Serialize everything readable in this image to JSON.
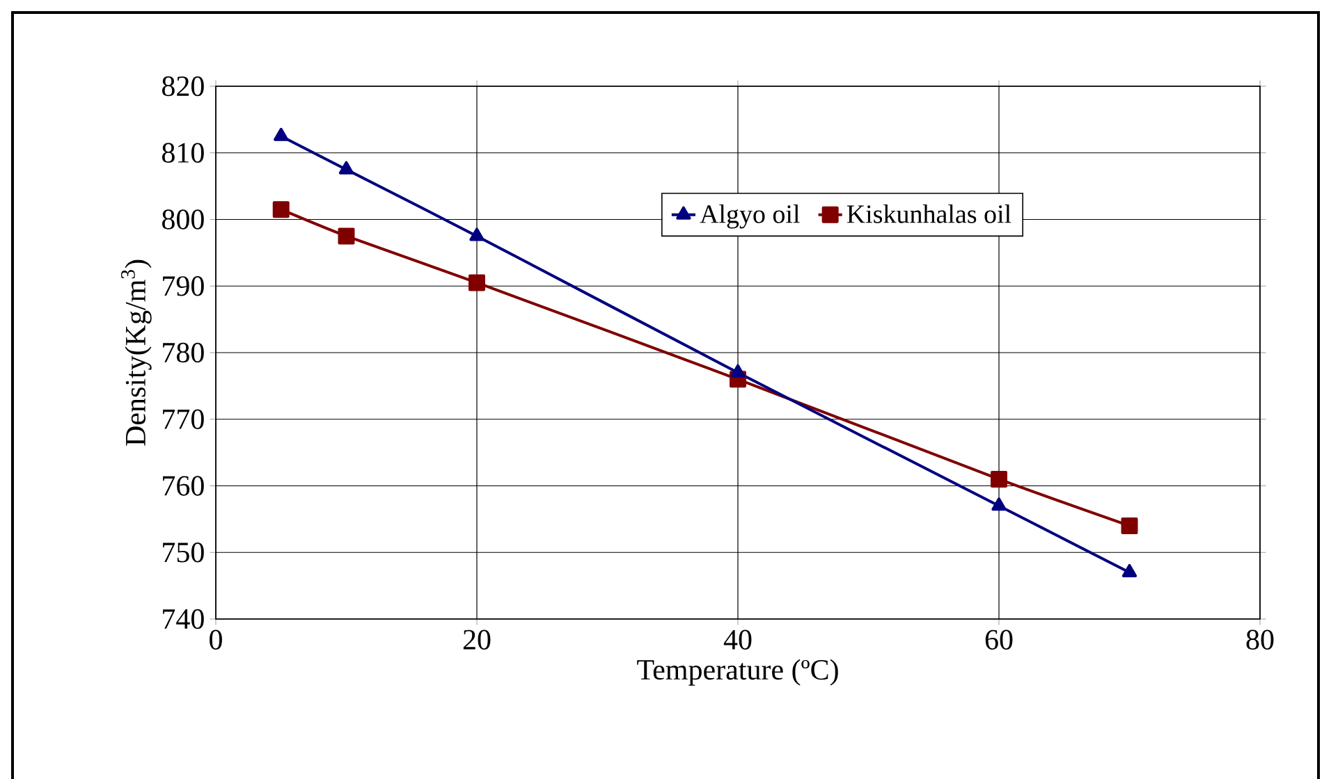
{
  "chart_data": {
    "type": "line",
    "xlabel": "Temperature (ºC)",
    "ylabel": "Density(Kg/m$^{3}$)",
    "x": [
      5,
      10,
      20,
      40,
      60,
      70
    ],
    "series": [
      {
        "name": "Algyo oil",
        "color": "#000080",
        "marker": "triangle",
        "values": [
          812.5,
          807.5,
          797.5,
          777,
          757,
          747
        ]
      },
      {
        "name": "Kiskunhalas oil",
        "color": "#800000",
        "marker": "square",
        "values": [
          801.5,
          797.5,
          790.5,
          776,
          761,
          754
        ]
      }
    ],
    "xlim": [
      0,
      80
    ],
    "ylim": [
      740,
      820
    ],
    "xticks": [
      0,
      20,
      40,
      60,
      80
    ],
    "yticks": [
      740,
      750,
      760,
      770,
      780,
      790,
      800,
      810,
      820
    ],
    "grid": true,
    "legend": "top",
    "line_style": "solid"
  }
}
